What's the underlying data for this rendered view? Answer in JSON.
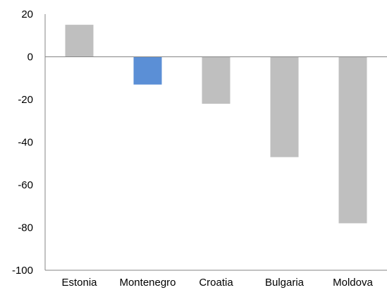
{
  "chart_data": {
    "type": "bar",
    "title": "",
    "xlabel": "",
    "ylabel": "",
    "categories": [
      "Estonia",
      "Montenegro",
      "Croatia",
      "Bulgaria",
      "Moldova"
    ],
    "values": [
      15,
      -13,
      -22,
      -47,
      -78
    ],
    "ylim": [
      -100,
      20
    ],
    "yticks": [
      20,
      0,
      -20,
      -40,
      -60,
      -80,
      -100
    ],
    "grid": false,
    "legend": "none",
    "colors": {
      "default_bar": "#bfbfbf",
      "highlight_bar": "#5b8fd6",
      "axis": "#868686"
    },
    "highlight_category": "Montenegro"
  }
}
